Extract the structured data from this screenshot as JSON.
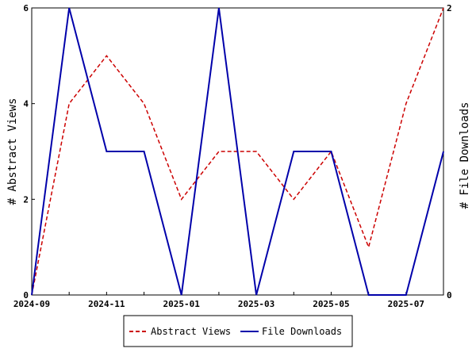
{
  "chart_data": {
    "type": "line",
    "x": [
      "2024-09",
      "2024-10",
      "2024-11",
      "2024-12",
      "2025-01",
      "2025-02",
      "2025-03",
      "2025-04",
      "2025-05",
      "2025-06",
      "2025-07",
      "2025-08"
    ],
    "x_tick_labels": [
      "2024-09",
      "2024-11",
      "2025-01",
      "2025-03",
      "2025-05",
      "2025-07"
    ],
    "series": [
      {
        "name": "Abstract Views",
        "axis": "left",
        "values": [
          0,
          4,
          5,
          4,
          2,
          3,
          3,
          2,
          3,
          1,
          4,
          6
        ],
        "color": "#cc0000",
        "style": "dashed"
      },
      {
        "name": "File Downloads",
        "axis": "right",
        "values": [
          0,
          2,
          1,
          1,
          0,
          2,
          0,
          1,
          1,
          0,
          0,
          1
        ],
        "color": "#0000aa",
        "style": "solid"
      }
    ],
    "ylabel_left": "# Abstract Views",
    "ylabel_right": "# File Downloads",
    "ylim_left": [
      0,
      6
    ],
    "ylim_right": [
      0,
      2
    ],
    "yticks_left": [
      "0",
      "2",
      "4",
      "6"
    ],
    "yticks_right": [
      "0",
      "2"
    ],
    "grid": false,
    "legend_position": "bottom-center"
  }
}
